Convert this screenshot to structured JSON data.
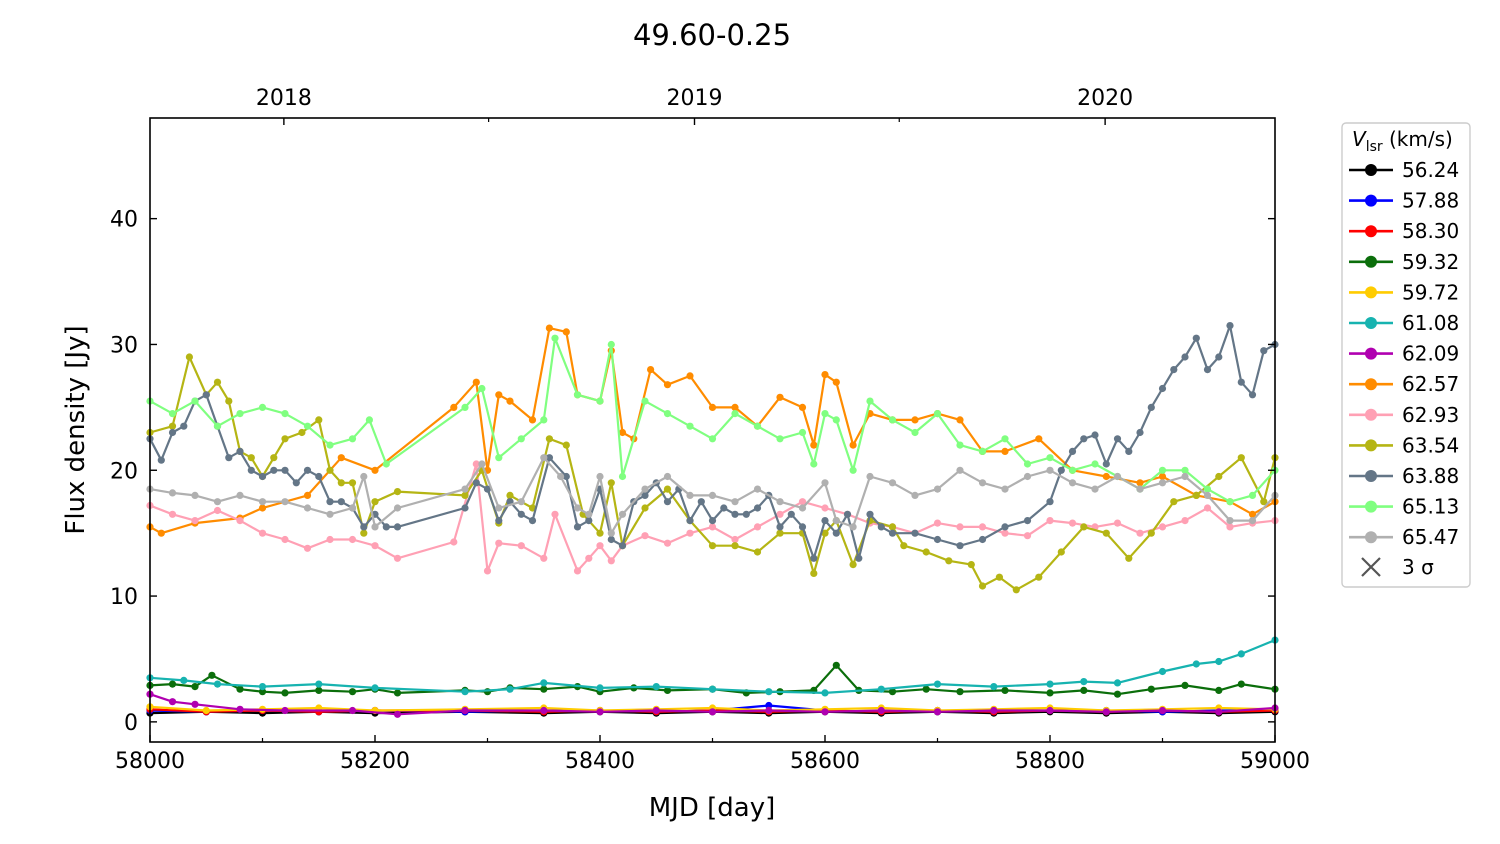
{
  "chart_data": {
    "type": "line",
    "title": "49.60-0.25",
    "xlabel": "MJD [day]",
    "ylabel": "Flux density [Jy]",
    "xlim": [
      58000,
      59000
    ],
    "ylim": [
      -1.6,
      48
    ],
    "x_ticks": [
      58000,
      58200,
      58400,
      58600,
      58800,
      59000
    ],
    "x_tick_labels": [
      "58000",
      "58200",
      "58400",
      "58600",
      "58800",
      "59000"
    ],
    "y_ticks": [
      0,
      10,
      20,
      30,
      40
    ],
    "y_tick_labels": [
      "0",
      "10",
      "20",
      "30",
      "40"
    ],
    "top_axis": {
      "ticks": [
        58119,
        58484,
        58849
      ],
      "labels": [
        "2018",
        "2019",
        "2020"
      ]
    },
    "grid": false,
    "legend": {
      "location": "outside-right",
      "title_main": "V",
      "title_sub": "lsr",
      "title_unit": " (km/s)",
      "sigma_marker_label": "3 σ",
      "sigma_marker_color": "#555555"
    },
    "series": [
      {
        "name": "56.24",
        "color": "#000000",
        "x": [
          58000,
          58050,
          58100,
          58150,
          58200,
          58280,
          58350,
          58400,
          58450,
          58500,
          58550,
          58600,
          58650,
          58700,
          58750,
          58800,
          58850,
          58900,
          58950,
          59000
        ],
        "y": [
          0.7,
          0.8,
          0.7,
          0.8,
          0.7,
          0.8,
          0.7,
          0.8,
          0.7,
          0.8,
          0.7,
          0.8,
          0.7,
          0.8,
          0.7,
          0.8,
          0.7,
          0.8,
          0.7,
          0.8
        ]
      },
      {
        "name": "57.88",
        "color": "#0000ff",
        "x": [
          58000,
          58050,
          58100,
          58150,
          58200,
          58280,
          58350,
          58400,
          58450,
          58500,
          58550,
          58600,
          58650,
          58700,
          58750,
          58800,
          58850,
          58900,
          58950,
          59000
        ],
        "y": [
          0.9,
          0.8,
          0.9,
          0.8,
          0.9,
          0.8,
          0.9,
          0.9,
          0.8,
          0.9,
          1.3,
          0.9,
          0.8,
          0.9,
          0.8,
          0.9,
          0.9,
          0.8,
          0.9,
          0.9
        ]
      },
      {
        "name": "58.30",
        "color": "#ff0000",
        "x": [
          58000,
          58050,
          58100,
          58150,
          58200,
          58280,
          58350,
          58400,
          58450,
          58500,
          58550,
          58600,
          58650,
          58700,
          58750,
          58800,
          58850,
          58900,
          58950,
          59000
        ],
        "y": [
          1.0,
          0.8,
          0.9,
          0.8,
          0.9,
          0.9,
          0.8,
          0.9,
          0.8,
          0.9,
          0.8,
          0.9,
          0.8,
          0.9,
          0.8,
          0.9,
          0.8,
          0.9,
          0.8,
          0.9
        ]
      },
      {
        "name": "59.32",
        "color": "#0b6e0b",
        "x": [
          58000,
          58020,
          58040,
          58055,
          58080,
          58100,
          58120,
          58150,
          58180,
          58200,
          58220,
          58280,
          58300,
          58320,
          58350,
          58380,
          58400,
          58430,
          58460,
          58500,
          58530,
          58560,
          58590,
          58610,
          58630,
          58660,
          58690,
          58720,
          58760,
          58800,
          58830,
          58860,
          58890,
          58920,
          58950,
          58970,
          59000
        ],
        "y": [
          2.9,
          3.0,
          2.8,
          3.7,
          2.6,
          2.4,
          2.3,
          2.5,
          2.4,
          2.6,
          2.3,
          2.5,
          2.4,
          2.7,
          2.6,
          2.8,
          2.4,
          2.7,
          2.5,
          2.6,
          2.3,
          2.4,
          2.5,
          4.5,
          2.5,
          2.4,
          2.6,
          2.4,
          2.5,
          2.3,
          2.5,
          2.2,
          2.6,
          2.9,
          2.5,
          3.0,
          2.6
        ]
      },
      {
        "name": "59.72",
        "color": "#ffcc00",
        "x": [
          58000,
          58050,
          58100,
          58150,
          58200,
          58280,
          58350,
          58400,
          58450,
          58500,
          58550,
          58600,
          58650,
          58700,
          58750,
          58800,
          58850,
          58900,
          58950,
          59000
        ],
        "y": [
          1.2,
          0.9,
          1.0,
          1.1,
          0.9,
          1.0,
          1.1,
          0.9,
          1.0,
          1.1,
          0.9,
          1.0,
          1.1,
          0.9,
          1.0,
          1.1,
          0.9,
          1.0,
          1.1,
          1.0
        ]
      },
      {
        "name": "61.08",
        "color": "#17b3b0",
        "x": [
          58000,
          58030,
          58060,
          58100,
          58150,
          58200,
          58280,
          58320,
          58350,
          58400,
          58450,
          58500,
          58550,
          58600,
          58650,
          58700,
          58750,
          58800,
          58830,
          58860,
          58900,
          58930,
          58950,
          58970,
          59000
        ],
        "y": [
          3.5,
          3.3,
          3.0,
          2.8,
          3.0,
          2.7,
          2.4,
          2.6,
          3.1,
          2.7,
          2.8,
          2.6,
          2.4,
          2.3,
          2.6,
          3.0,
          2.8,
          3.0,
          3.2,
          3.1,
          4.0,
          4.6,
          4.8,
          5.4,
          6.5
        ]
      },
      {
        "name": "62.09",
        "color": "#b000b0",
        "x": [
          58000,
          58020,
          58040,
          58080,
          58120,
          58180,
          58220,
          58280,
          58350,
          58400,
          58450,
          58500,
          58550,
          58600,
          58650,
          58700,
          58750,
          58800,
          58850,
          58900,
          58950,
          59000
        ],
        "y": [
          2.2,
          1.6,
          1.4,
          1.0,
          0.9,
          0.9,
          0.6,
          0.9,
          0.9,
          0.8,
          0.9,
          0.8,
          0.9,
          0.8,
          0.9,
          0.8,
          0.9,
          0.9,
          0.8,
          0.9,
          0.8,
          1.1
        ]
      },
      {
        "name": "62.57",
        "color": "#ff8c00",
        "x": [
          58000,
          58010,
          58040,
          58080,
          58100,
          58140,
          58170,
          58200,
          58270,
          58290,
          58300,
          58310,
          58320,
          58340,
          58355,
          58370,
          58380,
          58400,
          58410,
          58420,
          58430,
          58445,
          58460,
          58480,
          58500,
          58520,
          58540,
          58560,
          58580,
          58590,
          58600,
          58610,
          58625,
          58640,
          58660,
          58680,
          58700,
          58720,
          58740,
          58760,
          58790,
          58820,
          58850,
          58880,
          58900,
          58930,
          58960,
          58980,
          59000
        ],
        "y": [
          15.5,
          15.0,
          15.8,
          16.2,
          17.0,
          18.0,
          21.0,
          20.0,
          25.0,
          27.0,
          20.0,
          26.0,
          25.5,
          24.0,
          31.3,
          31.0,
          26.0,
          25.5,
          29.5,
          23.0,
          22.5,
          28.0,
          26.8,
          27.5,
          25.0,
          25.0,
          23.5,
          25.8,
          25.0,
          22.0,
          27.6,
          27.0,
          22.0,
          24.5,
          24.0,
          24.0,
          24.5,
          24.0,
          21.5,
          21.5,
          22.5,
          20.0,
          19.5,
          19.0,
          19.5,
          18.0,
          17.5,
          16.5,
          17.5
        ]
      },
      {
        "name": "62.93",
        "color": "#ffa0b4",
        "x": [
          58000,
          58020,
          58040,
          58060,
          58080,
          58100,
          58120,
          58140,
          58160,
          58180,
          58200,
          58220,
          58270,
          58290,
          58300,
          58310,
          58330,
          58350,
          58360,
          58380,
          58390,
          58400,
          58410,
          58420,
          58440,
          58460,
          58480,
          58500,
          58520,
          58540,
          58560,
          58580,
          58600,
          58620,
          58640,
          58660,
          58680,
          58700,
          58720,
          58740,
          58760,
          58780,
          58800,
          58820,
          58840,
          58860,
          58880,
          58900,
          58920,
          58940,
          58960,
          58980,
          59000
        ],
        "y": [
          17.2,
          16.5,
          16.0,
          16.8,
          16.0,
          15.0,
          14.5,
          13.8,
          14.5,
          14.5,
          14.0,
          13.0,
          14.3,
          20.5,
          12.0,
          14.2,
          14.0,
          13.0,
          16.5,
          12.0,
          13.0,
          14.0,
          12.8,
          14.0,
          14.8,
          14.2,
          15.0,
          15.5,
          14.5,
          15.5,
          16.5,
          17.5,
          17.0,
          16.5,
          15.8,
          15.5,
          15.0,
          15.8,
          15.5,
          15.5,
          15.0,
          14.8,
          16.0,
          15.8,
          15.5,
          15.8,
          15.0,
          15.5,
          16.0,
          17.0,
          15.5,
          15.8,
          16.0
        ]
      },
      {
        "name": "63.54",
        "color": "#b5b514",
        "x": [
          58000,
          58020,
          58035,
          58050,
          58060,
          58070,
          58080,
          58090,
          58100,
          58110,
          58120,
          58135,
          58150,
          58160,
          58170,
          58180,
          58190,
          58200,
          58220,
          58280,
          58295,
          58310,
          58320,
          58340,
          58355,
          58370,
          58385,
          58400,
          58410,
          58420,
          58440,
          58460,
          58480,
          58500,
          58520,
          58540,
          58560,
          58580,
          58590,
          58600,
          58610,
          58625,
          58640,
          58660,
          58670,
          58690,
          58710,
          58730,
          58740,
          58755,
          58770,
          58790,
          58810,
          58830,
          58850,
          58870,
          58890,
          58910,
          58930,
          58950,
          58970,
          58990,
          59000
        ],
        "y": [
          23.0,
          23.5,
          29.0,
          26.0,
          27.0,
          25.5,
          21.5,
          21.0,
          19.5,
          21.0,
          22.5,
          23.0,
          24.0,
          20.0,
          19.0,
          19.0,
          15.0,
          17.5,
          18.3,
          18.0,
          20.0,
          15.8,
          18.0,
          17.0,
          22.5,
          22.0,
          16.5,
          15.0,
          19.0,
          14.0,
          17.0,
          18.5,
          16.0,
          14.0,
          14.0,
          13.5,
          15.0,
          15.0,
          11.8,
          15.0,
          16.0,
          12.5,
          16.0,
          15.5,
          14.0,
          13.5,
          12.8,
          12.5,
          10.8,
          11.5,
          10.5,
          11.5,
          13.5,
          15.5,
          15.0,
          13.0,
          15.0,
          17.5,
          18.0,
          19.5,
          21.0,
          17.5,
          21.0
        ]
      },
      {
        "name": "63.88",
        "color": "#647687",
        "x": [
          58000,
          58010,
          58020,
          58030,
          58040,
          58050,
          58060,
          58070,
          58080,
          58090,
          58100,
          58110,
          58120,
          58130,
          58140,
          58150,
          58160,
          58170,
          58180,
          58190,
          58200,
          58210,
          58220,
          58280,
          58290,
          58300,
          58310,
          58320,
          58330,
          58340,
          58355,
          58370,
          58380,
          58390,
          58400,
          58410,
          58420,
          58430,
          58440,
          58450,
          58460,
          58470,
          58480,
          58490,
          58500,
          58510,
          58520,
          58530,
          58540,
          58550,
          58560,
          58570,
          58580,
          58590,
          58600,
          58610,
          58620,
          58630,
          58640,
          58650,
          58660,
          58680,
          58700,
          58720,
          58740,
          58760,
          58780,
          58800,
          58810,
          58820,
          58830,
          58840,
          58850,
          58860,
          58870,
          58880,
          58890,
          58900,
          58910,
          58920,
          58930,
          58940,
          58950,
          58960,
          58970,
          58980,
          58990,
          59000
        ],
        "y": [
          22.5,
          20.8,
          23.0,
          23.5,
          25.5,
          26.0,
          23.5,
          21.0,
          21.5,
          20.0,
          19.5,
          20.0,
          20.0,
          19.0,
          20.0,
          19.5,
          17.5,
          17.5,
          17.0,
          15.5,
          16.5,
          15.5,
          15.5,
          17.0,
          19.0,
          18.5,
          16.0,
          17.5,
          16.5,
          16.0,
          21.0,
          19.5,
          15.5,
          16.0,
          18.5,
          14.5,
          14.0,
          17.5,
          18.0,
          19.0,
          17.5,
          18.5,
          16.0,
          17.5,
          16.0,
          17.0,
          16.5,
          16.5,
          17.0,
          18.0,
          15.5,
          16.5,
          15.5,
          13.0,
          16.0,
          15.0,
          16.5,
          13.0,
          16.5,
          15.5,
          15.0,
          15.0,
          14.5,
          14.0,
          14.5,
          15.5,
          16.0,
          17.5,
          20.0,
          21.5,
          22.5,
          22.8,
          20.5,
          22.5,
          21.5,
          23.0,
          25.0,
          26.5,
          28.0,
          29.0,
          30.5,
          28.0,
          29.0,
          31.5,
          27.0,
          26.0,
          29.5,
          30.0
        ]
      },
      {
        "name": "65.13",
        "color": "#80ff80",
        "x": [
          58000,
          58020,
          58040,
          58060,
          58080,
          58100,
          58120,
          58140,
          58160,
          58180,
          58195,
          58210,
          58280,
          58295,
          58310,
          58330,
          58350,
          58360,
          58380,
          58400,
          58410,
          58420,
          58440,
          58460,
          58480,
          58500,
          58520,
          58540,
          58560,
          58580,
          58590,
          58600,
          58610,
          58625,
          58640,
          58660,
          58680,
          58700,
          58720,
          58740,
          58760,
          58780,
          58800,
          58820,
          58840,
          58860,
          58880,
          58900,
          58920,
          58940,
          58960,
          58980,
          59000
        ],
        "y": [
          25.5,
          24.5,
          25.5,
          23.5,
          24.5,
          25.0,
          24.5,
          23.5,
          22.0,
          22.5,
          24.0,
          20.5,
          25.0,
          26.5,
          21.0,
          22.5,
          24.0,
          30.5,
          26.0,
          25.5,
          30.0,
          19.5,
          25.5,
          24.5,
          23.5,
          22.5,
          24.5,
          23.5,
          22.5,
          23.0,
          20.5,
          24.5,
          24.0,
          20.0,
          25.5,
          24.0,
          23.0,
          24.5,
          22.0,
          21.5,
          22.5,
          20.5,
          21.0,
          20.0,
          20.5,
          19.5,
          18.5,
          20.0,
          20.0,
          18.5,
          17.5,
          18.0,
          20.0
        ]
      },
      {
        "name": "65.47",
        "color": "#b0b0b0",
        "x": [
          58000,
          58020,
          58040,
          58060,
          58080,
          58100,
          58120,
          58140,
          58160,
          58180,
          58190,
          58200,
          58220,
          58280,
          58295,
          58310,
          58330,
          58350,
          58365,
          58380,
          58390,
          58400,
          58410,
          58420,
          58440,
          58460,
          58480,
          58500,
          58520,
          58540,
          58560,
          58580,
          58600,
          58610,
          58625,
          58640,
          58660,
          58680,
          58700,
          58720,
          58740,
          58760,
          58780,
          58800,
          58820,
          58840,
          58860,
          58880,
          58900,
          58920,
          58940,
          58960,
          58980,
          59000
        ],
        "y": [
          18.5,
          18.2,
          18.0,
          17.5,
          18.0,
          17.5,
          17.5,
          17.0,
          16.5,
          17.0,
          19.5,
          15.5,
          17.0,
          18.5,
          20.5,
          17.0,
          17.5,
          21.0,
          19.5,
          17.0,
          16.5,
          19.5,
          15.0,
          16.5,
          18.5,
          19.5,
          18.0,
          18.0,
          17.5,
          18.5,
          17.5,
          17.0,
          19.0,
          16.0,
          15.5,
          19.5,
          19.0,
          18.0,
          18.5,
          20.0,
          19.0,
          18.5,
          19.5,
          20.0,
          19.0,
          18.5,
          19.5,
          18.5,
          19.0,
          19.5,
          18.0,
          16.0,
          16.0,
          18.0
        ]
      }
    ]
  }
}
